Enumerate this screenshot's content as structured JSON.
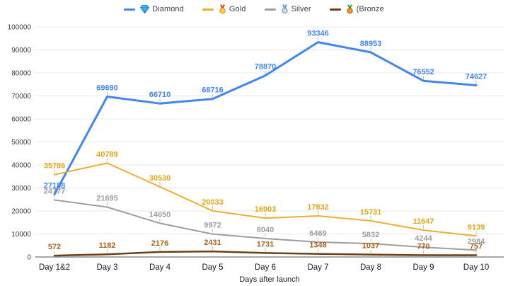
{
  "legend": {
    "items": [
      {
        "id": "diamond",
        "label": "Diamond",
        "color": "#4285F4",
        "icon": "gem-icon",
        "icon_colors": {
          "face": "#4FC3F7",
          "edge": "#1976D2"
        }
      },
      {
        "id": "gold",
        "label": "Gold",
        "color": "#EDAF2E",
        "icon": "gold-medal-icon",
        "icon_colors": {
          "ribbon": "#E53935",
          "face": "#FDD835",
          "rim": "#F57F17"
        }
      },
      {
        "id": "silver",
        "label": "Silver",
        "color": "#9E9E9E",
        "icon": "silver-medal-icon",
        "icon_colors": {
          "ribbon": "#42A5F5",
          "face": "#CFD8DC",
          "rim": "#78909C"
        }
      },
      {
        "id": "bronze",
        "label": "(Bronze",
        "color": "#703E10",
        "icon": "bronze-medal-icon",
        "icon_colors": {
          "ribbon": "#43A047",
          "face": "#F1942E",
          "rim": "#B95E04"
        }
      }
    ]
  },
  "chart_data": {
    "type": "line",
    "title": "",
    "xlabel": "Days after launch",
    "ylabel": "",
    "ylim": [
      0,
      100000
    ],
    "yticks": [
      0,
      10000,
      20000,
      30000,
      40000,
      50000,
      60000,
      70000,
      80000,
      90000,
      100000
    ],
    "grid": true,
    "legend_position": "top",
    "annotations": "values shown at every point",
    "categories": [
      "Day 1&2",
      "Day 3",
      "Day 4",
      "Day 5",
      "Day 6",
      "Day 7",
      "Day 8",
      "Day 9",
      "Day 10"
    ],
    "series": [
      {
        "name": "Diamond",
        "color": "#4285F4",
        "label_color": "#4285F4",
        "line_width": 3,
        "values": [
          27188,
          69690,
          66710,
          68716,
          78870,
          93346,
          88953,
          76552,
          74627
        ]
      },
      {
        "name": "Gold",
        "color": "#EDAF2E",
        "label_color": "#E2A713",
        "line_width": 2,
        "values": [
          35786,
          40789,
          30530,
          20033,
          16903,
          17832,
          15731,
          11647,
          9139
        ]
      },
      {
        "name": "Silver",
        "color": "#9E9E9E",
        "label_color": "#9E9E9E",
        "line_width": 2,
        "values": [
          24777,
          21695,
          14650,
          9972,
          8040,
          6469,
          5832,
          4244,
          2984
        ]
      },
      {
        "name": "(Bronze",
        "color": "#703E10",
        "label_color": "#A9631A",
        "line_width": 2.5,
        "values": [
          572,
          1182,
          2176,
          2431,
          1731,
          1348,
          1037,
          770,
          757
        ]
      }
    ],
    "axis_colors": {
      "gridline": "#E8E8E8",
      "baseline": "#757575",
      "tick_label": "#3c3c3c",
      "category_label": "#1a1a1a",
      "stem": "#C2C2C2"
    }
  }
}
